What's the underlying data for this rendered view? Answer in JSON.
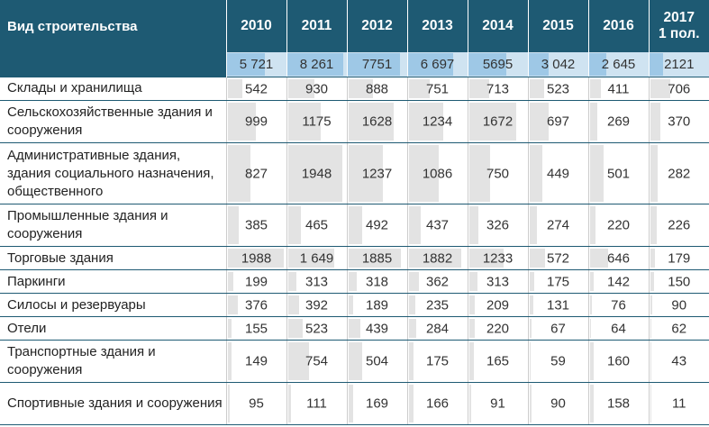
{
  "chart_data": {
    "type": "table",
    "column_header": "Вид строительства",
    "years": [
      "2010",
      "2011",
      "2012",
      "2013",
      "2014",
      "2015",
      "2016",
      "2017\n1 пол."
    ],
    "totals": [
      "5 721",
      "8 261",
      "7751",
      "6 697",
      "5695",
      "3 042",
      "2 645",
      "2121"
    ],
    "totals_numeric": [
      5721,
      8261,
      7751,
      6697,
      5695,
      3042,
      2645,
      2121
    ],
    "rows": [
      {
        "category": "Склады и хранилища",
        "values": [
          "542",
          "930",
          "888",
          "751",
          "713",
          "523",
          "411",
          "706"
        ],
        "numeric": [
          542,
          930,
          888,
          751,
          713,
          523,
          411,
          706
        ]
      },
      {
        "category": "Сельскохозяйственные здания и сооружения",
        "values": [
          "999",
          "1175",
          "1628",
          "1234",
          "1672",
          "697",
          "269",
          "370"
        ],
        "numeric": [
          999,
          1175,
          1628,
          1234,
          1672,
          697,
          269,
          370
        ]
      },
      {
        "category": "Административные здания, здания социального назначения, общественного",
        "values": [
          "827",
          "1948",
          "1237",
          "1086",
          "750",
          "449",
          "501",
          "282"
        ],
        "numeric": [
          827,
          1948,
          1237,
          1086,
          750,
          449,
          501,
          282
        ]
      },
      {
        "category": "Промышленные здания и сооружения",
        "values": [
          "385",
          "465",
          "492",
          "437",
          "326",
          "274",
          "220",
          "226"
        ],
        "numeric": [
          385,
          465,
          492,
          437,
          326,
          274,
          220,
          226
        ]
      },
      {
        "category": "Торговые здания",
        "values": [
          "1988",
          "1 649",
          "1885",
          "1882",
          "1233",
          "572",
          "646",
          "179"
        ],
        "numeric": [
          1988,
          1649,
          1885,
          1882,
          1233,
          572,
          646,
          179
        ]
      },
      {
        "category": "Паркинги",
        "values": [
          "199",
          "313",
          "318",
          "362",
          "313",
          "175",
          "142",
          "150"
        ],
        "numeric": [
          199,
          313,
          318,
          362,
          313,
          175,
          142,
          150
        ]
      },
      {
        "category": "Силосы и резервуары",
        "values": [
          "376",
          "392",
          "189",
          "235",
          "209",
          "131",
          "76",
          "90"
        ],
        "numeric": [
          376,
          392,
          189,
          235,
          209,
          131,
          76,
          90
        ]
      },
      {
        "category": "Отели",
        "values": [
          "155",
          "523",
          "439",
          "284",
          "220",
          "67",
          "64",
          "62"
        ],
        "numeric": [
          155,
          523,
          439,
          284,
          220,
          67,
          64,
          62
        ]
      },
      {
        "category": "Транспортные здания и сооружения",
        "values": [
          "149",
          "754",
          "504",
          "175",
          "165",
          "59",
          "160",
          "43"
        ],
        "numeric": [
          149,
          754,
          504,
          175,
          165,
          59,
          160,
          43
        ]
      },
      {
        "category": "Спортивные здания и сооружения",
        "values": [
          "95",
          "111",
          "169",
          "166",
          "91",
          "90",
          "158",
          "11"
        ],
        "numeric": [
          95,
          111,
          169,
          166,
          91,
          90,
          158,
          11
        ]
      }
    ],
    "colors": {
      "header_bg": "#1e5a73",
      "total_bg": "#cfe3f1",
      "total_bar": "#9ec8e6",
      "row_bar": "#e3e3e3",
      "rule": "#1e5a73"
    }
  }
}
